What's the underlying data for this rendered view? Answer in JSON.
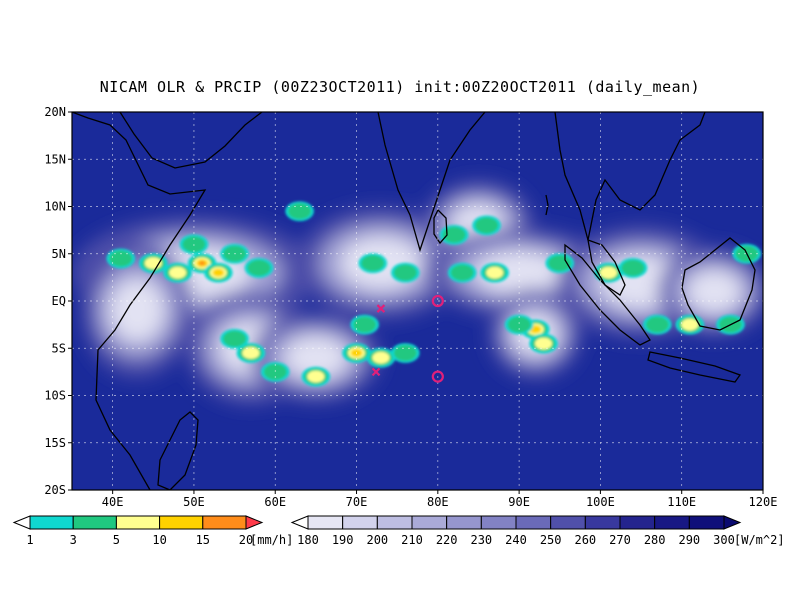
{
  "title": "NICAM OLR & PRCIP (00Z23OCT2011) init:00Z20OCT2011 (daily_mean)",
  "map": {
    "lon_range": [
      35,
      120
    ],
    "lat_range": [
      -20,
      20
    ],
    "lat_ticks": [
      {
        "value": 20,
        "label": "20N"
      },
      {
        "value": 15,
        "label": "15N"
      },
      {
        "value": 10,
        "label": "10N"
      },
      {
        "value": 5,
        "label": "5N"
      },
      {
        "value": 0,
        "label": "EQ"
      },
      {
        "value": -5,
        "label": "5S"
      },
      {
        "value": -10,
        "label": "10S"
      },
      {
        "value": -15,
        "label": "15S"
      },
      {
        "value": -20,
        "label": "20S"
      }
    ],
    "lon_ticks": [
      {
        "value": 40,
        "label": "40E"
      },
      {
        "value": 50,
        "label": "50E"
      },
      {
        "value": 60,
        "label": "60E"
      },
      {
        "value": 70,
        "label": "70E"
      },
      {
        "value": 80,
        "label": "80E"
      },
      {
        "value": 90,
        "label": "90E"
      },
      {
        "value": 100,
        "label": "100E"
      },
      {
        "value": 110,
        "label": "110E"
      },
      {
        "value": 120,
        "label": "120E"
      }
    ],
    "background_color": "#1a2a9a",
    "grid": "dotted",
    "markers": [
      {
        "type": "x",
        "lon": 73,
        "lat": -0.8,
        "color": "#e0207a"
      },
      {
        "type": "x",
        "lon": 72.4,
        "lat": -7.5,
        "color": "#e0207a"
      },
      {
        "type": "circle",
        "lon": 80,
        "lat": 0,
        "color": "#e0207a"
      },
      {
        "type": "circle",
        "lon": 80,
        "lat": -8,
        "color": "#e0207a"
      }
    ],
    "cloud_bands": [
      {
        "lon": 50,
        "lat": 3,
        "rx": 13,
        "ry": 5
      },
      {
        "lon": 43,
        "lat": -1,
        "rx": 6,
        "ry": 6
      },
      {
        "lon": 57,
        "lat": -5,
        "rx": 7,
        "ry": 5
      },
      {
        "lon": 65,
        "lat": -6,
        "rx": 7,
        "ry": 4
      },
      {
        "lon": 73,
        "lat": 4,
        "rx": 9,
        "ry": 5
      },
      {
        "lon": 85,
        "lat": 8,
        "rx": 6,
        "ry": 4
      },
      {
        "lon": 90,
        "lat": 3,
        "rx": 10,
        "ry": 4
      },
      {
        "lon": 92,
        "lat": -3.5,
        "rx": 5,
        "ry": 4
      },
      {
        "lon": 105,
        "lat": 2,
        "rx": 9,
        "ry": 5
      },
      {
        "lon": 114,
        "lat": 1,
        "rx": 6,
        "ry": 4
      }
    ],
    "precip_cells": [
      {
        "lon": 45,
        "lat": 4,
        "level": 3
      },
      {
        "lon": 51,
        "lat": 4,
        "level": 5
      },
      {
        "lon": 53,
        "lat": 3,
        "level": 4
      },
      {
        "lon": 50,
        "lat": 6,
        "level": 2
      },
      {
        "lon": 48,
        "lat": 3,
        "level": 3
      },
      {
        "lon": 55,
        "lat": 5,
        "level": 2
      },
      {
        "lon": 58,
        "lat": 3.5,
        "level": 2
      },
      {
        "lon": 57,
        "lat": -5.5,
        "level": 3
      },
      {
        "lon": 55,
        "lat": -4,
        "level": 2
      },
      {
        "lon": 60,
        "lat": -7.5,
        "level": 2
      },
      {
        "lon": 65,
        "lat": -8,
        "level": 3
      },
      {
        "lon": 70,
        "lat": -5.5,
        "level": 4
      },
      {
        "lon": 73,
        "lat": -6,
        "level": 3
      },
      {
        "lon": 76,
        "lat": -5.5,
        "level": 2
      },
      {
        "lon": 71,
        "lat": -2.5,
        "level": 2
      },
      {
        "lon": 76,
        "lat": 3,
        "level": 2
      },
      {
        "lon": 72,
        "lat": 4,
        "level": 2
      },
      {
        "lon": 82,
        "lat": 7,
        "level": 2
      },
      {
        "lon": 86,
        "lat": 8,
        "level": 2
      },
      {
        "lon": 83,
        "lat": 3,
        "level": 2
      },
      {
        "lon": 87,
        "lat": 3,
        "level": 3
      },
      {
        "lon": 92,
        "lat": -3,
        "level": 4
      },
      {
        "lon": 93,
        "lat": -4.5,
        "level": 3
      },
      {
        "lon": 90,
        "lat": -2.5,
        "level": 2
      },
      {
        "lon": 95,
        "lat": 4,
        "level": 2
      },
      {
        "lon": 101,
        "lat": 3,
        "level": 3
      },
      {
        "lon": 104,
        "lat": 3.5,
        "level": 2
      },
      {
        "lon": 107,
        "lat": -2.5,
        "level": 2
      },
      {
        "lon": 111,
        "lat": -2.5,
        "level": 3
      },
      {
        "lon": 116,
        "lat": -2.5,
        "level": 2
      },
      {
        "lon": 118,
        "lat": 5,
        "level": 2
      },
      {
        "lon": 41,
        "lat": 4.5,
        "level": 2
      },
      {
        "lon": 63,
        "lat": 9.5,
        "level": 2
      }
    ]
  },
  "precip_legend": {
    "colors": [
      "#ffffff",
      "#10d8d0",
      "#20c880",
      "#ffff90",
      "#ffd200",
      "#ff8c1a",
      "#ff3a4a"
    ],
    "labels": [
      "1",
      "3",
      "5",
      "10",
      "15",
      "20"
    ],
    "unit": "[mm/h]"
  },
  "olr_legend": {
    "colors": [
      "#ffffff",
      "#e6e6f4",
      "#d2d2ec",
      "#bebee2",
      "#aaaad8",
      "#9696ce",
      "#8282c4",
      "#6a6ab8",
      "#5050aa",
      "#38389e",
      "#24248e",
      "#181884",
      "#10107a",
      "#0a0a70"
    ],
    "labels": [
      "180",
      "190",
      "200",
      "210",
      "220",
      "230",
      "240",
      "250",
      "260",
      "270",
      "280",
      "290",
      "300"
    ],
    "unit": "[W/m^2]"
  }
}
